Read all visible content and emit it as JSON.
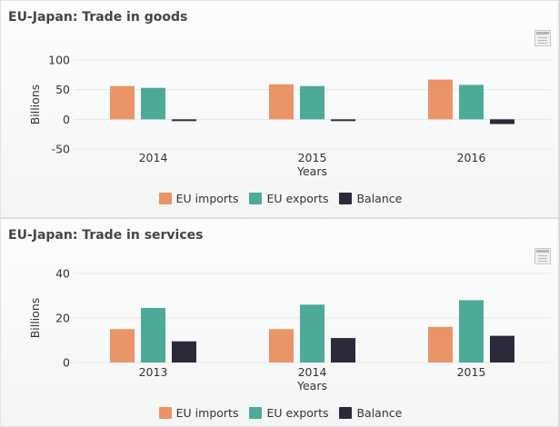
{
  "colors": {
    "imports": "#ea9467",
    "exports": "#4daa98",
    "balance": "#2b2a3a",
    "gridline": "#e6e6e6",
    "axis_text": "#333333"
  },
  "header_icons": {
    "export_menu": "hamburger-menu-icon"
  },
  "chart_data": [
    {
      "type": "bar",
      "title": "EU-Japan: Trade in goods",
      "xlabel": "Years",
      "ylabel": "Billions",
      "categories": [
        "2014",
        "2015",
        "2016"
      ],
      "ylim": [
        -50,
        100
      ],
      "yticks": [
        -50,
        0,
        50,
        100
      ],
      "grid": true,
      "legend_position": "bottom-center",
      "series": [
        {
          "name": "EU imports",
          "color_key": "imports",
          "values": [
            56,
            59,
            67
          ]
        },
        {
          "name": "EU exports",
          "color_key": "exports",
          "values": [
            53,
            56,
            58
          ]
        },
        {
          "name": "Balance",
          "color_key": "balance",
          "values": [
            -3,
            -3,
            -8
          ]
        }
      ]
    },
    {
      "type": "bar",
      "title": "EU-Japan: Trade in services",
      "xlabel": "Years",
      "ylabel": "Billions",
      "categories": [
        "2013",
        "2014",
        "2015"
      ],
      "ylim": [
        0,
        40
      ],
      "yticks": [
        0,
        20,
        40
      ],
      "grid": true,
      "legend_position": "bottom-center",
      "series": [
        {
          "name": "EU imports",
          "color_key": "imports",
          "values": [
            15,
            15,
            16
          ]
        },
        {
          "name": "EU exports",
          "color_key": "exports",
          "values": [
            24.5,
            26,
            28
          ]
        },
        {
          "name": "Balance",
          "color_key": "balance",
          "values": [
            9.5,
            11,
            12
          ]
        }
      ]
    }
  ]
}
